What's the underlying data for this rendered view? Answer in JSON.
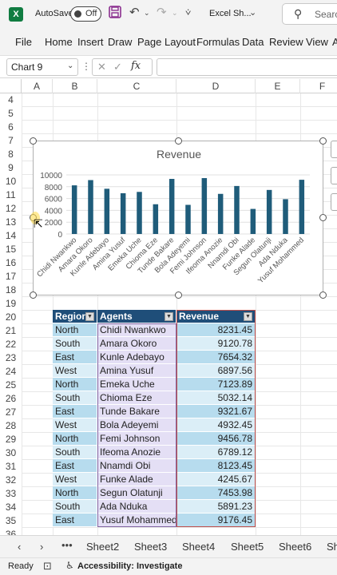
{
  "titlebar": {
    "autosave_label": "AutoSave",
    "autosave_state": "Off",
    "filename": "Excel Sh...",
    "search_placeholder": "Search"
  },
  "ribbon": {
    "tabs": [
      "File",
      "Home",
      "Insert",
      "Draw",
      "Page Layout",
      "Formulas",
      "Data",
      "Review",
      "View",
      "A"
    ]
  },
  "formula_bar": {
    "name_box": "Chart 9",
    "fx": "fx",
    "formula": ""
  },
  "columns": [
    "A",
    "B",
    "C",
    "D",
    "E",
    "F"
  ],
  "rows": [
    "4",
    "5",
    "6",
    "7",
    "8",
    "9",
    "10",
    "11",
    "12",
    "13",
    "14",
    "15",
    "16",
    "17",
    "18",
    "19",
    "20",
    "21",
    "22",
    "23",
    "24",
    "25",
    "26",
    "27",
    "28",
    "29",
    "30",
    "31",
    "32",
    "33",
    "34",
    "35",
    "36"
  ],
  "chart_data": {
    "type": "bar",
    "title": "Revenue",
    "categories": [
      "Chidi Nwankwo",
      "Amara Okoro",
      "Kunle Adebayo",
      "Amina Yusuf",
      "Emeka Uche",
      "Chioma Eze",
      "Tunde Bakare",
      "Bola Adeyemi",
      "Femi Johnson",
      "Ifeoma Anozie",
      "Nnamdi Obi",
      "Funke Alade",
      "Segun Olatunji",
      "Ada Nduka",
      "Yusuf Mohammed"
    ],
    "values": [
      8231.45,
      9120.78,
      7654.32,
      6897.56,
      7123.89,
      5032.14,
      9321.67,
      4932.45,
      9456.78,
      6789.12,
      8123.45,
      4245.67,
      7453.98,
      5891.23,
      9176.45
    ],
    "yticks": [
      "0",
      "2000",
      "4000",
      "6000",
      "8000",
      "10000"
    ],
    "ylim": [
      0,
      10000
    ],
    "bar_color": "#1f5c7a"
  },
  "table": {
    "headers": [
      "Region",
      "Agents",
      "Revenue"
    ],
    "rows": [
      [
        "North",
        "Chidi Nwankwo",
        "8231.45"
      ],
      [
        "South",
        "Amara Okoro",
        "9120.78"
      ],
      [
        "East",
        "Kunle Adebayo",
        "7654.32"
      ],
      [
        "West",
        "Amina Yusuf",
        "6897.56"
      ],
      [
        "North",
        "Emeka Uche",
        "7123.89"
      ],
      [
        "South",
        "Chioma Eze",
        "5032.14"
      ],
      [
        "East",
        "Tunde Bakare",
        "9321.67"
      ],
      [
        "West",
        "Bola Adeyemi",
        "4932.45"
      ],
      [
        "North",
        "Femi Johnson",
        "9456.78"
      ],
      [
        "South",
        "Ifeoma Anozie",
        "6789.12"
      ],
      [
        "East",
        "Nnamdi Obi",
        "8123.45"
      ],
      [
        "West",
        "Funke Alade",
        "4245.67"
      ],
      [
        "North",
        "Segun Olatunji",
        "7453.98"
      ],
      [
        "South",
        "Ada Nduka",
        "5891.23"
      ],
      [
        "East",
        "Yusuf Mohammed",
        "9176.45"
      ]
    ]
  },
  "sheet_tabs": [
    "Sheet2",
    "Sheet3",
    "Sheet4",
    "Sheet5",
    "Sheet6",
    "Sh"
  ],
  "status": {
    "ready": "Ready",
    "accessibility": "Accessibility: Investigate"
  },
  "colors": {
    "header_fill": "#1f4e79",
    "row_band_a": "#b7dcee",
    "row_band_b": "#dbeef7",
    "agents_fill": "#e4dff5"
  }
}
